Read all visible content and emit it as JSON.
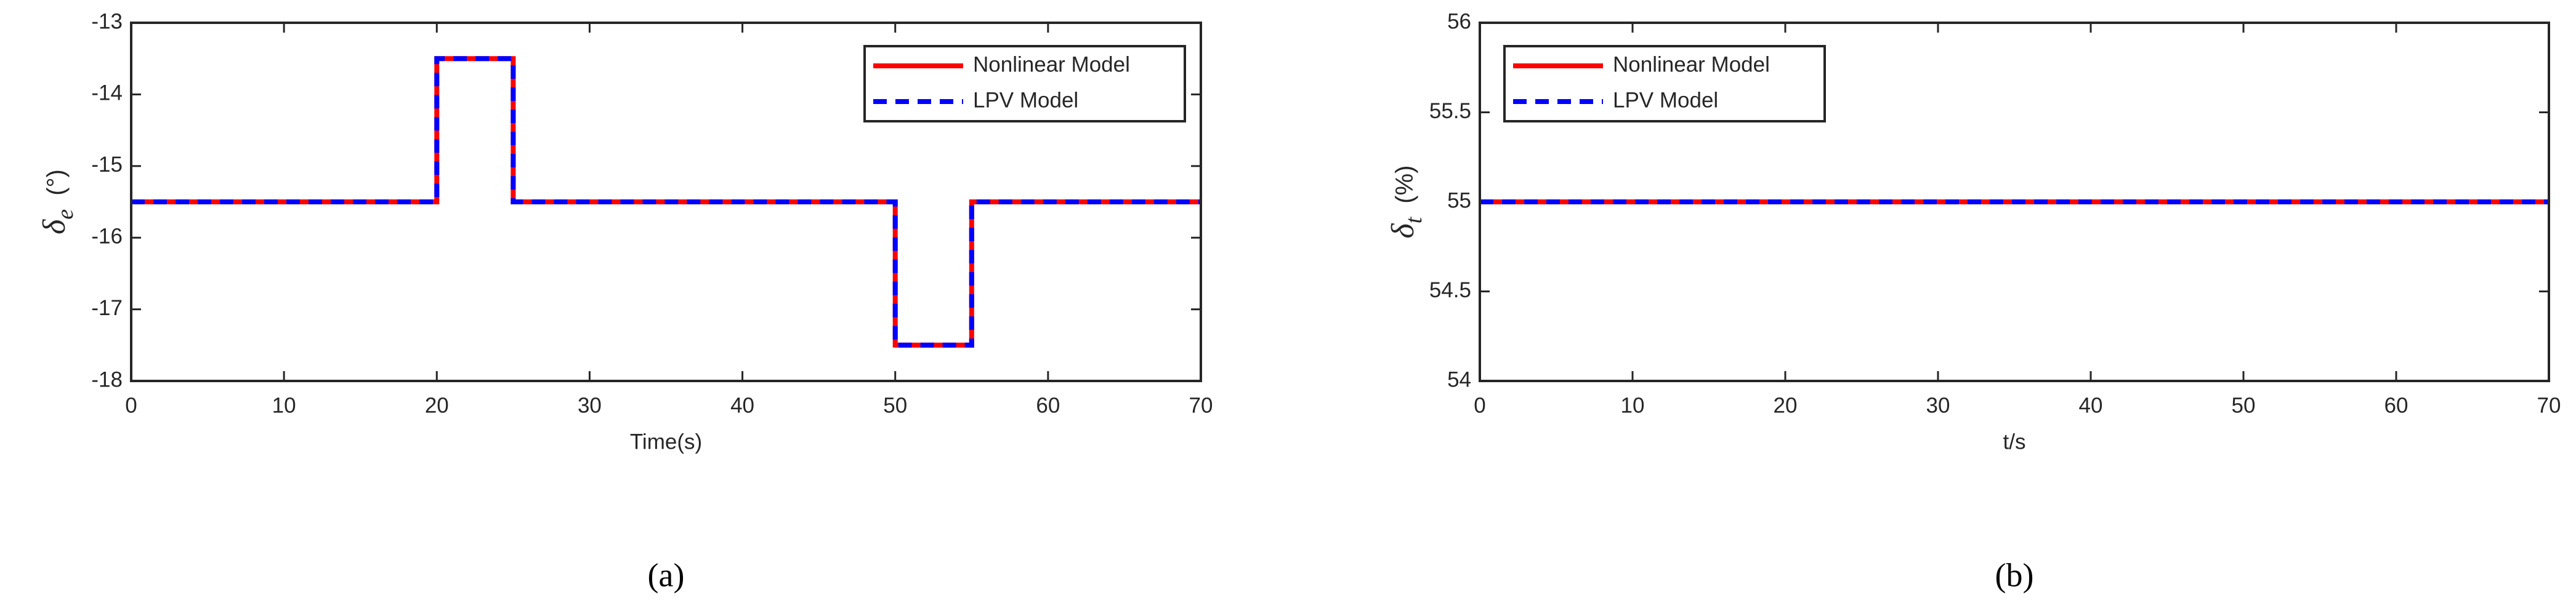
{
  "chart_data": [
    {
      "type": "line",
      "caption": "(a)",
      "xlabel": "Time(s)",
      "ylabel_symbol": "δ",
      "ylabel_subscript": "e",
      "ylabel_unit": "(°)",
      "xlim": [
        0,
        70
      ],
      "xticks": [
        0,
        10,
        20,
        30,
        40,
        50,
        60,
        70
      ],
      "ylim": [
        -18,
        -13
      ],
      "yticks": [
        -18,
        -17,
        -16,
        -15,
        -14,
        -13
      ],
      "legend": "upper right",
      "series": [
        {
          "name": "Nonlinear Model",
          "color": "#ff0000",
          "dash": false,
          "x": [
            0,
            20,
            20,
            25,
            25,
            50,
            50,
            55,
            55,
            70
          ],
          "values": [
            -15.5,
            -15.5,
            -13.5,
            -13.5,
            -15.5,
            -15.5,
            -17.5,
            -17.5,
            -15.5,
            -15.5
          ]
        },
        {
          "name": "LPV Model",
          "color": "#0000ff",
          "dash": true,
          "x": [
            0,
            20,
            20,
            25,
            25,
            50,
            50,
            55,
            55,
            70
          ],
          "values": [
            -15.5,
            -15.5,
            -13.5,
            -13.5,
            -15.5,
            -15.5,
            -17.5,
            -17.5,
            -15.5,
            -15.5
          ]
        }
      ]
    },
    {
      "type": "line",
      "caption": "(b)",
      "xlabel": "t/s",
      "ylabel_symbol": "δ",
      "ylabel_subscript": "t",
      "ylabel_unit": "(%)",
      "xlim": [
        0,
        70
      ],
      "xticks": [
        0,
        10,
        20,
        30,
        40,
        50,
        60,
        70
      ],
      "ylim": [
        54,
        56
      ],
      "yticks": [
        54,
        54.5,
        55,
        55.5,
        56
      ],
      "legend": "upper left",
      "series": [
        {
          "name": "Nonlinear Model",
          "color": "#ff0000",
          "dash": false,
          "x": [
            0,
            70
          ],
          "values": [
            55,
            55
          ]
        },
        {
          "name": "LPV Model",
          "color": "#0000ff",
          "dash": true,
          "x": [
            0,
            70
          ],
          "values": [
            55,
            55
          ]
        }
      ]
    }
  ]
}
